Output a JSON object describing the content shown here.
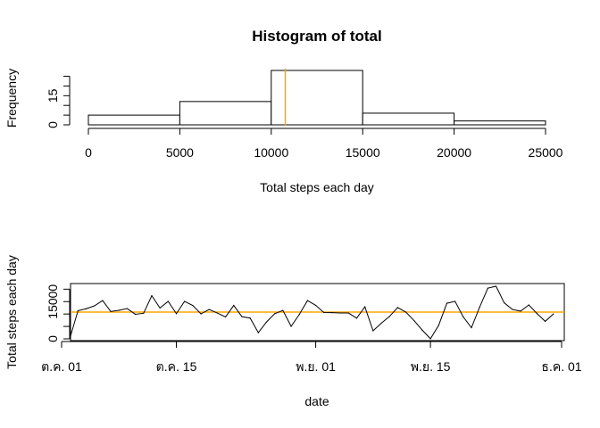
{
  "chart_data": [
    {
      "type": "bar",
      "title": "Histogram of total",
      "xlabel": "Total steps each day",
      "ylabel": "Frequency",
      "bins": [
        [
          0,
          5000
        ],
        [
          5000,
          10000
        ],
        [
          10000,
          15000
        ],
        [
          15000,
          20000
        ],
        [
          20000,
          25000
        ]
      ],
      "values": [
        5,
        12,
        28,
        6,
        2
      ],
      "xticks": [
        "0",
        "5000",
        "10000",
        "15000",
        "20000",
        "25000"
      ],
      "yticks": [
        "0",
        "15"
      ],
      "xlim": [
        0,
        25000
      ],
      "ylim": [
        0,
        28
      ],
      "mean_line": {
        "x": 10766,
        "color": "#ffa500"
      },
      "bar_fill": "#ffffff",
      "bar_stroke": "#000000"
    },
    {
      "type": "line",
      "xlabel": "date",
      "ylabel": "Total steps each day",
      "xticks": [
        "ต.ค. 01",
        "ต.ค. 15",
        "พ.ย. 01",
        "พ.ย. 15",
        "ธ.ค. 01"
      ],
      "xtick_days": [
        0,
        14,
        31,
        45,
        61
      ],
      "yticks": [
        "0",
        "15000"
      ],
      "ylim": [
        0,
        21194
      ],
      "xlim": [
        0,
        61
      ],
      "series": [
        {
          "x": [
            1,
            2,
            3,
            4,
            5,
            6,
            7,
            8,
            9,
            10,
            11,
            12,
            13,
            14,
            15,
            16,
            17,
            18,
            19,
            20,
            21,
            22,
            23,
            24,
            25,
            26,
            27,
            28,
            29,
            30,
            31,
            32,
            33,
            34,
            35,
            36,
            37,
            38,
            39,
            40,
            41,
            42,
            43,
            44,
            45,
            46,
            47,
            48,
            49,
            50,
            51,
            52,
            53,
            54,
            55,
            56,
            57,
            58,
            59,
            60
          ],
          "values": [
            126,
            11352,
            12116,
            13294,
            15420,
            11015,
            11500,
            12200,
            9900,
            10304,
            17382,
            12426,
            15098,
            10139,
            15084,
            13452,
            10056,
            11829,
            10395,
            8821,
            13460,
            8918,
            8355,
            2492,
            6778,
            10119,
            11458,
            5018,
            9819,
            15414,
            13500,
            10600,
            10571,
            10439,
            10396,
            8334,
            12883,
            3219,
            6300,
            9000,
            12608,
            10765,
            7336,
            3500,
            41,
            5441,
            14339,
            15110,
            8841,
            4472,
            12787,
            20427,
            21194,
            14478,
            11834,
            11162,
            13646,
            10183,
            7047,
            10000
          ],
          "color": "#000000"
        }
      ],
      "mean_line": {
        "y": 10766,
        "color": "#ffa500"
      }
    }
  ]
}
